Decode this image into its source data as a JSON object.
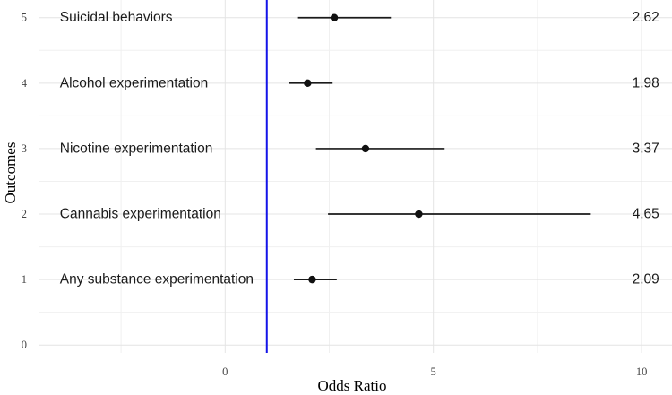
{
  "chart_data": {
    "type": "scatter",
    "subtype": "forest-plot",
    "title": "",
    "xlabel": "Odds Ratio",
    "ylabel": "Outcomes",
    "x_ticks": [
      0,
      5,
      10
    ],
    "x_tick_labels": [
      "0",
      "5",
      "10"
    ],
    "x_minor_ticks": [
      -2.5,
      2.5,
      7.5
    ],
    "y_ticks": [
      0,
      1,
      2,
      3,
      4,
      5
    ],
    "y_tick_labels": [
      "0",
      "1",
      "2",
      "3",
      "4",
      "5"
    ],
    "y_minor_ticks": [
      0.5,
      1.5,
      2.5,
      3.5,
      4.5
    ],
    "xlim": [
      -4.46,
      10.73
    ],
    "ylim": [
      -0.12,
      5.27
    ],
    "grid": true,
    "legend": "none",
    "reference_line": {
      "x": 1
    },
    "label_x": -3.97,
    "value_x": 10.1,
    "rows": [
      {
        "y": 5,
        "label": "Suicidal behaviors",
        "odds_ratio": 2.62,
        "ci_low": 1.75,
        "ci_high": 3.98,
        "value_label": "2.62"
      },
      {
        "y": 4,
        "label": "Alcohol experimentation",
        "odds_ratio": 1.98,
        "ci_low": 1.53,
        "ci_high": 2.58,
        "value_label": "1.98"
      },
      {
        "y": 3,
        "label": "Nicotine experimentation",
        "odds_ratio": 3.37,
        "ci_low": 2.18,
        "ci_high": 5.27,
        "value_label": "3.37"
      },
      {
        "y": 2,
        "label": "Cannabis experimentation",
        "odds_ratio": 4.65,
        "ci_low": 2.47,
        "ci_high": 8.78,
        "value_label": "4.65"
      },
      {
        "y": 1,
        "label": "Any substance experimentation",
        "odds_ratio": 2.09,
        "ci_low": 1.65,
        "ci_high": 2.68,
        "value_label": "2.09"
      }
    ],
    "colors": {
      "reference": "#1414e8",
      "point": "#111111",
      "ci_line": "#1a1a1a",
      "major_grid": "#e4e4e4",
      "minor_grid": "#f0f0f0",
      "axis_text": "#454545",
      "axis_title": "#000000",
      "label_text": "#1a1a1a",
      "background": "#ffffff"
    }
  }
}
